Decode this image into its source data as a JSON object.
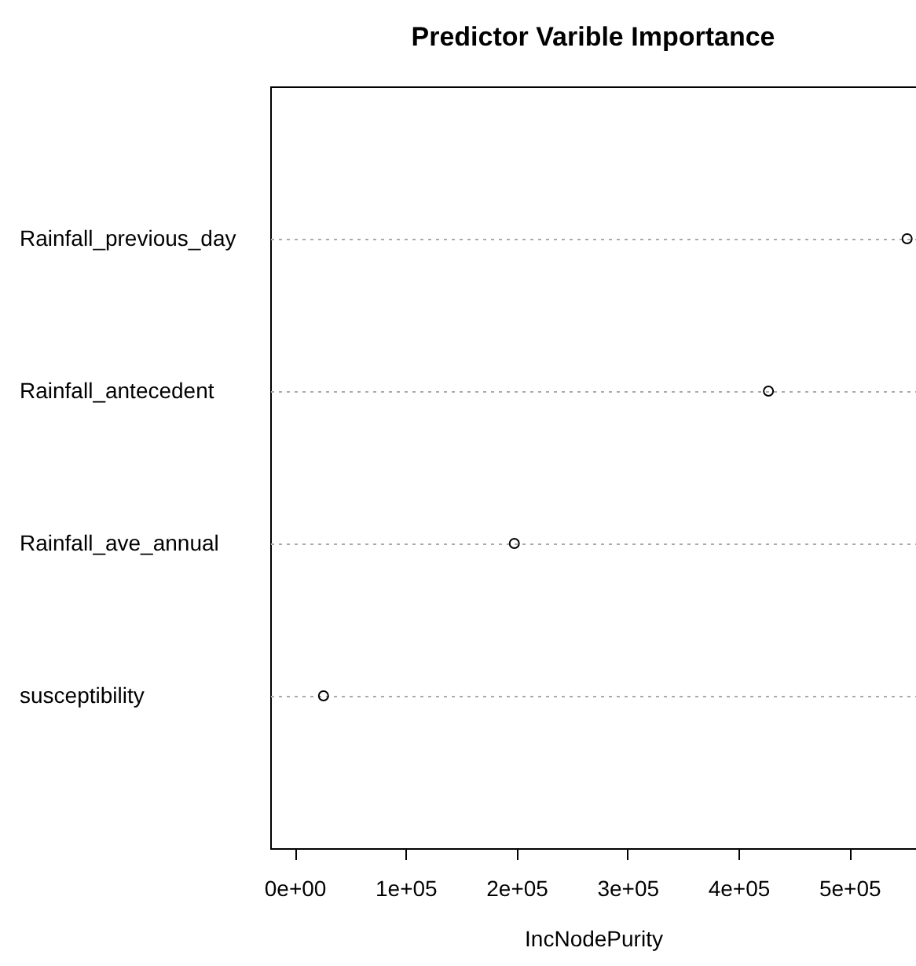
{
  "chart_data": {
    "type": "scatter",
    "title": "Predictor Varible Importance",
    "xlabel": "IncNodePurity",
    "orientation": "horizontal",
    "categories": [
      "Rainfall_previous_day",
      "Rainfall_antecedent",
      "Rainfall_ave_annual",
      "susceptibility"
    ],
    "values": [
      552000,
      427000,
      198000,
      26000
    ],
    "color": "#000000",
    "xlim": [
      -22000,
      560000
    ],
    "xticks": [
      {
        "value": 0,
        "label": "0e+00"
      },
      {
        "value": 100000,
        "label": "1e+05"
      },
      {
        "value": 200000,
        "label": "2e+05"
      },
      {
        "value": 300000,
        "label": "3e+05"
      },
      {
        "value": 400000,
        "label": "4e+05"
      },
      {
        "value": 500000,
        "label": "5e+05"
      }
    ],
    "grid": "y",
    "marker": "circle"
  }
}
